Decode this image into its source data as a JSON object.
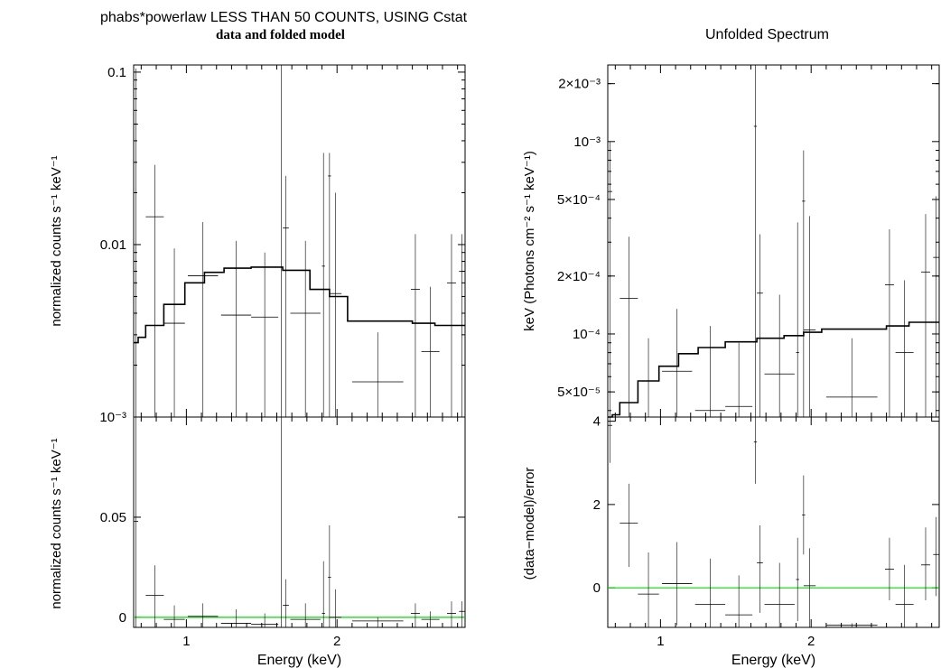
{
  "left_title": "phabs*powerlaw LESS THAN 50 COUNTS, USING Cstat",
  "left_subtitle": "data and folded model",
  "right_title": "Unfolded Spectrum",
  "colors": {
    "model": "#000000",
    "data": "#000000",
    "zero_line": "#00dd00",
    "axes": "#000000"
  },
  "chart_data": [
    {
      "id": "left_top",
      "type": "line",
      "yscale": "log",
      "xlim": [
        0.65,
        2.85
      ],
      "ylim": [
        0.001,
        0.11
      ],
      "ylabel": "normalized counts s⁻¹ keV⁻¹",
      "xlabel": "",
      "yticks": [
        {
          "v": 0.1,
          "label": "0.1"
        },
        {
          "v": 0.01,
          "label": "0.01"
        },
        {
          "v": 0.001,
          "label": "10⁻³"
        }
      ],
      "model_step": {
        "edges": [
          0.65,
          0.68,
          0.73,
          0.85,
          0.99,
          1.12,
          1.25,
          1.43,
          1.64,
          1.82,
          1.95,
          2.07,
          2.5,
          2.65,
          2.85
        ],
        "values": [
          0.0027,
          0.0029,
          0.0034,
          0.0045,
          0.006,
          0.0069,
          0.0073,
          0.0074,
          0.0071,
          0.0055,
          0.005,
          0.0036,
          0.0035,
          0.0034
        ]
      },
      "data_points": [
        {
          "x": 0.665,
          "xerr": 0.015,
          "y": 0.05,
          "ylo": 0.001,
          "yhi": 0.105
        },
        {
          "x": 0.79,
          "xerr": 0.06,
          "y": 0.0145,
          "ylo": 0.001,
          "yhi": 0.029
        },
        {
          "x": 0.92,
          "xerr": 0.07,
          "y": 0.0035,
          "ylo": 0.001,
          "yhi": 0.0095
        },
        {
          "x": 1.11,
          "xerr": 0.1,
          "y": 0.0066,
          "ylo": 0.001,
          "yhi": 0.0135
        },
        {
          "x": 1.33,
          "xerr": 0.1,
          "y": 0.0039,
          "ylo": 0.001,
          "yhi": 0.0105
        },
        {
          "x": 1.52,
          "xerr": 0.09,
          "y": 0.0038,
          "ylo": 0.001,
          "yhi": 0.009
        },
        {
          "x": 1.63,
          "xerr": 0.01,
          "y": 0.11,
          "ylo": 0.001,
          "yhi": 0.11
        },
        {
          "x": 1.66,
          "xerr": 0.02,
          "y": 0.0125,
          "ylo": 0.001,
          "yhi": 0.025
        },
        {
          "x": 1.79,
          "xerr": 0.1,
          "y": 0.004,
          "ylo": 0.001,
          "yhi": 0.0105
        },
        {
          "x": 1.91,
          "xerr": 0.01,
          "y": 0.0075,
          "ylo": 0.001,
          "yhi": 0.034
        },
        {
          "x": 1.95,
          "xerr": 0.01,
          "y": 0.025,
          "ylo": 0.001,
          "yhi": 0.034
        },
        {
          "x": 1.99,
          "xerr": 0.04,
          "y": 0.0052,
          "ylo": 0.001,
          "yhi": 0.02
        },
        {
          "x": 2.27,
          "xerr": 0.17,
          "y": 0.0016,
          "ylo": 0.001,
          "yhi": 0.0031
        },
        {
          "x": 2.52,
          "xerr": 0.03,
          "y": 0.0055,
          "ylo": 0.001,
          "yhi": 0.0115
        },
        {
          "x": 2.62,
          "xerr": 0.06,
          "y": 0.0024,
          "ylo": 0.001,
          "yhi": 0.0057
        },
        {
          "x": 2.76,
          "xerr": 0.03,
          "y": 0.006,
          "ylo": 0.001,
          "yhi": 0.0115
        },
        {
          "x": 2.83,
          "xerr": 0.02,
          "y": 0.007,
          "ylo": 0.001,
          "yhi": 0.0115
        }
      ]
    },
    {
      "id": "left_bottom",
      "type": "scatter",
      "yscale": "linear",
      "xlim": [
        0.65,
        2.85
      ],
      "ylim": [
        -0.005,
        0.1
      ],
      "ylabel": "normalized counts s⁻¹ keV⁻¹",
      "xlabel": "Energy (keV)",
      "yticks": [
        {
          "v": 0.05,
          "label": "0.05"
        },
        {
          "v": 0,
          "label": "0"
        }
      ],
      "xticks": [
        {
          "v": 1,
          "label": "1"
        },
        {
          "v": 2,
          "label": "2"
        }
      ],
      "zero_line": 0,
      "data_points": [
        {
          "x": 0.665,
          "xerr": 0.015,
          "y": 0.048,
          "ylo": -0.005,
          "yhi": 0.1
        },
        {
          "x": 0.79,
          "xerr": 0.06,
          "y": 0.011,
          "ylo": -0.005,
          "yhi": 0.026
        },
        {
          "x": 0.92,
          "xerr": 0.07,
          "y": -0.001,
          "ylo": -0.005,
          "yhi": 0.006
        },
        {
          "x": 1.11,
          "xerr": 0.1,
          "y": 0.0005,
          "ylo": -0.005,
          "yhi": 0.007
        },
        {
          "x": 1.33,
          "xerr": 0.1,
          "y": -0.003,
          "ylo": -0.005,
          "yhi": 0.004
        },
        {
          "x": 1.52,
          "xerr": 0.09,
          "y": -0.0035,
          "ylo": -0.005,
          "yhi": 0.002
        },
        {
          "x": 1.63,
          "xerr": 0.01,
          "y": 0.1,
          "ylo": -0.005,
          "yhi": 0.1
        },
        {
          "x": 1.66,
          "xerr": 0.02,
          "y": 0.006,
          "ylo": -0.005,
          "yhi": 0.019
        },
        {
          "x": 1.79,
          "xerr": 0.1,
          "y": -0.001,
          "ylo": -0.005,
          "yhi": 0.007
        },
        {
          "x": 1.91,
          "xerr": 0.01,
          "y": 0.002,
          "ylo": -0.005,
          "yhi": 0.028
        },
        {
          "x": 1.95,
          "xerr": 0.01,
          "y": 0.02,
          "ylo": -0.005,
          "yhi": 0.046
        },
        {
          "x": 1.99,
          "xerr": 0.04,
          "y": 0.0,
          "ylo": -0.005,
          "yhi": 0.014
        },
        {
          "x": 2.27,
          "xerr": 0.17,
          "y": -0.0018,
          "ylo": -0.005,
          "yhi": 0.0
        },
        {
          "x": 2.52,
          "xerr": 0.03,
          "y": 0.002,
          "ylo": -0.005,
          "yhi": 0.007
        },
        {
          "x": 2.62,
          "xerr": 0.06,
          "y": -0.001,
          "ylo": -0.005,
          "yhi": 0.003
        },
        {
          "x": 2.76,
          "xerr": 0.03,
          "y": 0.002,
          "ylo": -0.005,
          "yhi": 0.008
        },
        {
          "x": 2.83,
          "xerr": 0.02,
          "y": 0.003,
          "ylo": -0.005,
          "yhi": 0.008
        }
      ]
    },
    {
      "id": "right_top",
      "type": "line",
      "yscale": "log",
      "xlim": [
        0.65,
        2.85
      ],
      "ylim": [
        3.7e-05,
        0.0025
      ],
      "ylabel": "keV (Photons cm⁻² s⁻¹ keV⁻¹)",
      "xlabel": "",
      "yticks": [
        {
          "v": 0.002,
          "label": "2×10⁻³"
        },
        {
          "v": 0.001,
          "label": "10⁻³"
        },
        {
          "v": 0.0005,
          "label": "5×10⁻⁴"
        },
        {
          "v": 0.0002,
          "label": "2×10⁻⁴"
        },
        {
          "v": 0.0001,
          "label": "10⁻⁴"
        },
        {
          "v": 5e-05,
          "label": "5×10⁻⁵"
        }
      ],
      "model_step": {
        "edges": [
          0.65,
          0.68,
          0.73,
          0.85,
          0.99,
          1.12,
          1.25,
          1.43,
          1.64,
          1.82,
          1.95,
          2.07,
          2.5,
          2.65,
          2.85
        ],
        "values": [
          3.7e-05,
          3.8e-05,
          4.4e-05,
          5.7e-05,
          6.8e-05,
          7.9e-05,
          8.5e-05,
          9.1e-05,
          9.5e-05,
          9.8e-05,
          0.000102,
          0.000106,
          0.00011,
          0.000115
        ]
      },
      "data_points": [
        {
          "x": 0.665,
          "xerr": 0.015,
          "y": 0.00055,
          "ylo": 3.7e-05,
          "yhi": 0.001
        },
        {
          "x": 0.79,
          "xerr": 0.06,
          "y": 0.000153,
          "ylo": 3.7e-05,
          "yhi": 0.00032
        },
        {
          "x": 0.92,
          "xerr": 0.07,
          "y": 3.7e-05,
          "ylo": 3.7e-05,
          "yhi": 9.5e-05
        },
        {
          "x": 1.11,
          "xerr": 0.1,
          "y": 6.4e-05,
          "ylo": 3.7e-05,
          "yhi": 0.000135
        },
        {
          "x": 1.33,
          "xerr": 0.1,
          "y": 4e-05,
          "ylo": 3.7e-05,
          "yhi": 0.00011
        },
        {
          "x": 1.52,
          "xerr": 0.09,
          "y": 4.2e-05,
          "ylo": 3.7e-05,
          "yhi": 9e-05
        },
        {
          "x": 1.63,
          "xerr": 0.01,
          "y": 0.0012,
          "ylo": 3.7e-05,
          "yhi": 0.0025
        },
        {
          "x": 1.66,
          "xerr": 0.02,
          "y": 0.000163,
          "ylo": 3.7e-05,
          "yhi": 0.00033
        },
        {
          "x": 1.79,
          "xerr": 0.1,
          "y": 6.2e-05,
          "ylo": 3.7e-05,
          "yhi": 0.00016
        },
        {
          "x": 1.91,
          "xerr": 0.01,
          "y": 8e-05,
          "ylo": 3.7e-05,
          "yhi": 0.00038
        },
        {
          "x": 1.95,
          "xerr": 0.01,
          "y": 0.00049,
          "ylo": 3.7e-05,
          "yhi": 0.0009
        },
        {
          "x": 1.99,
          "xerr": 0.04,
          "y": 0.000105,
          "ylo": 3.7e-05,
          "yhi": 0.00041
        },
        {
          "x": 2.27,
          "xerr": 0.17,
          "y": 4.7e-05,
          "ylo": 3.7e-05,
          "yhi": 9.5e-05
        },
        {
          "x": 2.52,
          "xerr": 0.03,
          "y": 0.00018,
          "ylo": 3.7e-05,
          "yhi": 0.00035
        },
        {
          "x": 2.62,
          "xerr": 0.06,
          "y": 8e-05,
          "ylo": 3.7e-05,
          "yhi": 0.00019
        },
        {
          "x": 2.76,
          "xerr": 0.03,
          "y": 0.00021,
          "ylo": 3.7e-05,
          "yhi": 0.00042
        },
        {
          "x": 2.83,
          "xerr": 0.02,
          "y": 0.00025,
          "ylo": 3.7e-05,
          "yhi": 0.00052
        }
      ]
    },
    {
      "id": "right_bottom",
      "type": "scatter",
      "yscale": "linear",
      "xlim": [
        0.65,
        2.85
      ],
      "ylim": [
        -0.95,
        4.1
      ],
      "ylabel": "(data−model)/error",
      "xlabel": "Energy (keV)",
      "yticks": [
        {
          "v": 4,
          "label": "4"
        },
        {
          "v": 2,
          "label": "2"
        },
        {
          "v": 0,
          "label": "0"
        }
      ],
      "xticks": [
        {
          "v": 1,
          "label": "1"
        },
        {
          "v": 2,
          "label": "2"
        }
      ],
      "zero_line": 0,
      "data_points": [
        {
          "x": 0.665,
          "xerr": 0.015,
          "y": 3.9,
          "ylo": 3.0,
          "yhi": 4.1
        },
        {
          "x": 0.79,
          "xerr": 0.06,
          "y": 1.55,
          "ylo": 0.5,
          "yhi": 2.5
        },
        {
          "x": 0.92,
          "xerr": 0.07,
          "y": -0.15,
          "ylo": -0.95,
          "yhi": 0.85
        },
        {
          "x": 1.11,
          "xerr": 0.1,
          "y": 0.1,
          "ylo": -0.9,
          "yhi": 1.1
        },
        {
          "x": 1.33,
          "xerr": 0.1,
          "y": -0.4,
          "ylo": -0.95,
          "yhi": 0.7
        },
        {
          "x": 1.52,
          "xerr": 0.09,
          "y": -0.65,
          "ylo": -0.95,
          "yhi": 0.3
        },
        {
          "x": 1.63,
          "xerr": 0.01,
          "y": 3.5,
          "ylo": 2.5,
          "yhi": 4.1
        },
        {
          "x": 1.66,
          "xerr": 0.02,
          "y": 0.6,
          "ylo": -0.6,
          "yhi": 1.5
        },
        {
          "x": 1.79,
          "xerr": 0.1,
          "y": -0.4,
          "ylo": -0.95,
          "yhi": 0.6
        },
        {
          "x": 1.91,
          "xerr": 0.01,
          "y": 0.2,
          "ylo": -0.8,
          "yhi": 1.2
        },
        {
          "x": 1.95,
          "xerr": 0.01,
          "y": 1.75,
          "ylo": 0.8,
          "yhi": 2.7
        },
        {
          "x": 1.99,
          "xerr": 0.04,
          "y": 0.05,
          "ylo": -0.95,
          "yhi": 0.95
        },
        {
          "x": 2.27,
          "xerr": 0.17,
          "y": -0.9,
          "ylo": -0.95,
          "yhi": -0.85
        },
        {
          "x": 2.52,
          "xerr": 0.03,
          "y": 0.45,
          "ylo": -0.3,
          "yhi": 1.2
        },
        {
          "x": 2.62,
          "xerr": 0.06,
          "y": -0.4,
          "ylo": -0.95,
          "yhi": 0.55
        },
        {
          "x": 2.76,
          "xerr": 0.03,
          "y": 0.55,
          "ylo": -0.3,
          "yhi": 1.45
        },
        {
          "x": 2.83,
          "xerr": 0.02,
          "y": 0.8,
          "ylo": -0.2,
          "yhi": 1.7
        }
      ]
    }
  ]
}
